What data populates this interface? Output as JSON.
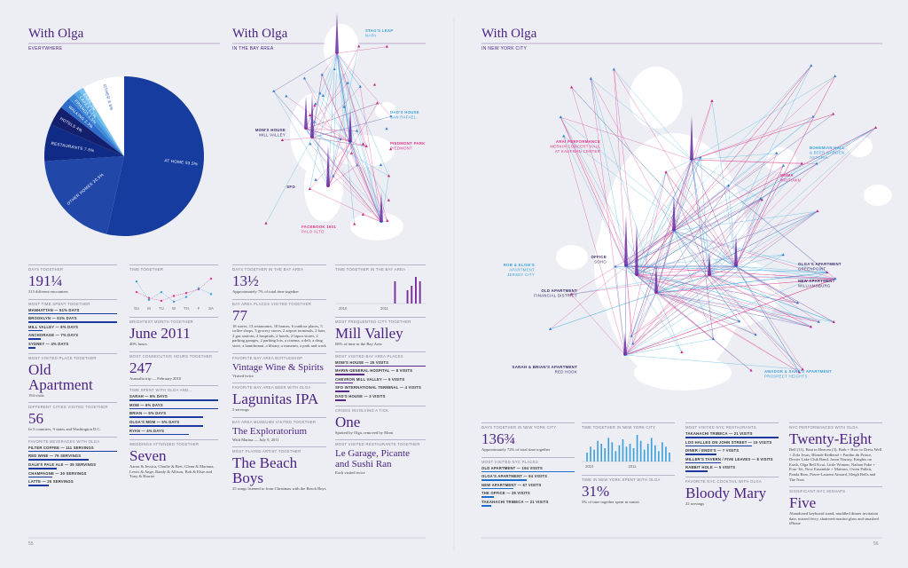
{
  "everywhere": {
    "title": "With Olga",
    "subtitle": "EVERYWHERE",
    "pie": {
      "type": "pie",
      "labels": [
        "AT HOME 53.5%",
        "OTHER HOMES 20.5%",
        "RESTAURANTS 7.5%",
        "HOTELS 4%",
        "WALKING 2.3%",
        "FRIENDS 1.5%",
        "CAFES 1.1%",
        "BARS 1%",
        "OTHER 8.6%"
      ],
      "values": [
        53.5,
        20.5,
        7.5,
        4,
        2.3,
        1.5,
        1.1,
        1,
        8.6
      ],
      "colors": [
        "#173c9f",
        "#2147a8",
        "#0f2b86",
        "#14206e",
        "#2f6bc9",
        "#3f8ad8",
        "#55a6e4",
        "#74c0ee",
        "#ffffff"
      ]
    }
  },
  "bay": {
    "title": "With Olga",
    "subtitle": "IN THE BAY AREA",
    "map_labels": [
      {
        "lines": [
          "STAG'S LEAP",
          "NAPA"
        ]
      },
      {
        "lines": [
          "DAD'S HOUSE",
          "SAN RAFAEL"
        ]
      },
      {
        "lines": [
          "MOM'S HOUSE",
          "MILL VALLEY"
        ]
      },
      {
        "lines": [
          "PIEDMONT PARK",
          "PIEDMONT"
        ]
      },
      {
        "lines": [
          "SFO"
        ]
      },
      {
        "lines": [
          "FACEBOOK 1601",
          "PALO ALTO"
        ]
      }
    ]
  },
  "nyc": {
    "title": "With Olga",
    "subtitle": "IN NEW YORK CITY",
    "map_labels": [
      {
        "lines": [
          "ARAI PERFORMANCE",
          "MERKIN CONCERT HALL",
          "AT KAUFMAN CENTER"
        ]
      },
      {
        "lines": [
          "BOHEMIAN HALL",
          "& BEER GARDEN",
          "ASTORIA"
        ]
      },
      {
        "lines": [
          "MOMA",
          "MIDTOWN"
        ]
      },
      {
        "lines": [
          "OFFICE",
          "SOHO"
        ]
      },
      {
        "lines": [
          "ROB & ELISE'S",
          "APARTMENT",
          "JERSEY CITY"
        ]
      },
      {
        "lines": [
          "OLD APARTMENT",
          "FINANCIAL DISTRICT"
        ]
      },
      {
        "lines": [
          "OLGA'S APARTMENT",
          "GREENPOINT"
        ]
      },
      {
        "lines": [
          "NEW APARTMENT",
          "WILLIAMSBURG"
        ]
      },
      {
        "lines": [
          "SARAH & BRIAN'S APARTMENT",
          "RED HOOK"
        ]
      },
      {
        "lines": [
          "AMADOR & SARA'S APARTMENT",
          "PROSPECT HEIGHTS"
        ]
      }
    ]
  },
  "columns": [
    [
      {
        "label": "DAYS TOGETHER",
        "value": "191¼",
        "note": "315 different encounters"
      },
      {
        "label": "MOST TIME SPENT TOGETHER",
        "items": [
          {
            "text": "MANHATTAN — 51% DAYS",
            "value": 51
          },
          {
            "text": "BROOKLYN — 51% DAYS",
            "value": 51
          },
          {
            "text": "MILL VALLEY — 8% DAYS",
            "value": 8
          },
          {
            "text": "ANCHORAGE — 7% DAYS",
            "value": 7
          },
          {
            "text": "SYDNEY — 4% DAYS",
            "value": 4
          }
        ]
      },
      {
        "label": "MOST VISITED PLACE TOGETHER",
        "value": "Old Apartment",
        "note": "194 visits"
      },
      {
        "label": "DIFFERENT CITIES VISITED TOGETHER",
        "value": "56",
        "note": "In 5 countries, 9 states and Washington D.C."
      },
      {
        "label": "FAVORITE BEVERAGES WITH OLGA",
        "items": [
          {
            "text": "FILTER COFFEE — 111 SERVINGS",
            "value": 111
          },
          {
            "text": "RED WINE — 76 SERVINGS",
            "value": 76
          },
          {
            "text": "DALE'S PALE ALE — 35 SERVINGS",
            "value": 35
          },
          {
            "text": "CHAMPAGNE — 30 SERVINGS",
            "value": 30
          },
          {
            "text": "LATTE — 26 SERVINGS",
            "value": 26
          }
        ]
      }
    ],
    [
      {
        "label": "TIME TOGETHER",
        "chart": {
          "type": "line",
          "categories": [
            "SU",
            "M",
            "TU",
            "W",
            "TH",
            "F",
            "SA"
          ],
          "series": [
            {
              "color": "#e0338a",
              "values": [
                3.0,
                2.4,
                2.1,
                2.6,
                2.9,
                3.3,
                4.4
              ]
            },
            {
              "color": "#3aa0dc",
              "values": [
                4.1,
                2.2,
                3.0,
                2.0,
                2.5,
                3.4,
                2.8
              ]
            }
          ]
        }
      },
      {
        "label": "BRIGHTEST MONTH TOGETHER",
        "value": "June 2011",
        "note": "40% hours"
      },
      {
        "label": "MOST CONSECUTIVE HOURS TOGETHER",
        "value": "247",
        "note": "Australia trip — February 2010"
      },
      {
        "label": "TIME SPENT WITH OLGA AND...",
        "items": [
          {
            "text": "SARAH — 6% DAYS",
            "value": 6
          },
          {
            "text": "MOM — 6% DAYS",
            "value": 6
          },
          {
            "text": "BRIAN — 5% DAYS",
            "value": 5
          },
          {
            "text": "OLGA'S MOM — 5% DAYS",
            "value": 5
          },
          {
            "text": "RYAN — 4% DAYS",
            "value": 4
          }
        ]
      },
      {
        "label": "WEDDINGS ATTENDED TOGETHER",
        "value": "Seven",
        "note": "Aaron & Jessica, Charlie & Bret, Glenn & Mariana, Lewis & Ange, Randy & Allison, Bob & Elsie and Tony & Harriet"
      }
    ],
    [
      {
        "label": "DAYS TOGETHER IN THE BAY AREA",
        "value": "13½",
        "note": "Approximately 7% of total time together"
      },
      {
        "label": "BAY AREA PLACES VISITED TOGETHER",
        "value": "77",
        "note": "18 stores, 13 restaurants, 10 homes, 6 outdoor places, 5 coffee shops, 3 grocery stores, 2 airport terminals, 2 bars, 2 gas stations, 2 hospitals, 2 hotels, 2 liquor stores, 2 parking garages, 2 parking lots, a cinema, a deli, a drug store, a laundromat, a library, a museum, a park and work"
      },
      {
        "label": "FAVORITE BAY AREA BOTTLESHOP",
        "value": "Vintage Wine & Spirits",
        "note": "Visited twice"
      },
      {
        "label": "FAVORITE BAY AREA BEER WITH OLGA",
        "value": "Lagunitas IPA",
        "note": "5 servings"
      },
      {
        "label": "BAY AREA MUSEUMS VISITED TOGETHER",
        "value": "The Exploratorium",
        "note": "With Marina — July 9, 2011"
      },
      {
        "label": "MOST PLAYED ARTIST TOGETHER",
        "value": "The Beach Boys",
        "note": "25 songs listened to from Christmas with the Beach Boys"
      }
    ],
    [
      {
        "label": "TIME TOGETHER IN THE BAY AREA",
        "chart": {
          "type": "bar",
          "color": "#7a2a9a",
          "categories": [
            "2010",
            null,
            null,
            null,
            null,
            null,
            null,
            null,
            null,
            null,
            "2011",
            null,
            null,
            null,
            null,
            null,
            null,
            null,
            null,
            null
          ],
          "values": [
            0,
            0,
            0,
            0,
            0,
            0,
            0,
            0,
            0,
            0,
            0,
            0,
            0,
            5,
            0,
            0,
            3,
            4,
            6,
            5
          ]
        }
      },
      {
        "label": "MOST FREQUENTED CITY TOGETHER",
        "value": "Mill Valley",
        "note": "68% of time in the Bay Area"
      },
      {
        "label": "MOST VISITED BAY AREA PLACES",
        "items": [
          {
            "text": "MOM'S HOUSE — 25 VISITS",
            "value": 25
          },
          {
            "text": "MARIN GENERAL HOSPITAL — 8 VISITS",
            "value": 8
          },
          {
            "text": "CHEVRON MILL VALLEY — 5 VISITS",
            "value": 5
          },
          {
            "text": "SFO INTERNATIONAL TERMINAL — 4 VISITS",
            "value": 4
          },
          {
            "text": "DAD'S HOUSE — 3 VISITS",
            "value": 3
          }
        ]
      },
      {
        "label": "CRISES INVOLVING A TICK",
        "value": "One",
        "note": "Spotted by Olga, removed by Mom"
      },
      {
        "label": "MOST VISITED RESTAURANTS TOGETHER",
        "value": "Le Garage, Picante and Sushi Ran",
        "note": "Each visited twice"
      }
    ],
    [
      {
        "label": "DAYS TOGETHER IN NEW YORK CITY",
        "value": "136¾",
        "note": "Approximately 72% of total time together"
      },
      {
        "label": "MOST VISITED NYC PLACES",
        "items": [
          {
            "text": "OLD APARTMENT — 194 VISITS",
            "value": 194
          },
          {
            "text": "OLGA'S APARTMENT — 94 VISITS",
            "value": 94
          },
          {
            "text": "NEW APARTMENT — 67 VISITS",
            "value": 67
          },
          {
            "text": "THE OFFICE — 25 VISITS",
            "value": 25
          },
          {
            "text": "TAKAHACHI TRIBECA — 21 VISITS",
            "value": 21
          }
        ]
      }
    ],
    [
      {
        "label": "TIME TOGETHER IN NEW YORK CITY",
        "chart": {
          "type": "bar",
          "color": "#3aa0dc",
          "categories": [
            "2010",
            null,
            null,
            null,
            null,
            null,
            null,
            null,
            null,
            null,
            null,
            null,
            "2011",
            null,
            null,
            null,
            null,
            null,
            null,
            null,
            null,
            null,
            null,
            null
          ],
          "values": [
            6,
            10,
            8,
            14,
            12,
            9,
            16,
            13,
            7,
            11,
            15,
            10,
            12,
            9,
            18,
            14,
            8,
            12,
            16,
            11,
            7,
            13,
            10,
            6
          ]
        }
      },
      {
        "label": "TIME IN NEW YORK SPENT WITH OLGA",
        "value": "31%",
        "note": "5% of time together spent in transit"
      }
    ],
    [
      {
        "label": "MOST VISITED NYC RESTAURANTS",
        "items": [
          {
            "text": "TAKAHACHI TRIBECA — 21 VISITS",
            "value": 21
          },
          {
            "text": "LOS HALLES ON JOHN STREET — 15 VISITS",
            "value": 15
          },
          {
            "text": "DINER / ENDS'S — 7 VISITS",
            "value": 7
          },
          {
            "text": "MILLER'S TAVERN / FIVE LEAVES — 8 VISITS",
            "value": 8
          },
          {
            "text": "RABBIT HOLE — 5 VISITS",
            "value": 5
          }
        ]
      },
      {
        "label": "FAVORITE NYC COCKTAIL WITH OLGA",
        "value": "Bloody Mary",
        "note": "22 servings"
      }
    ],
    [
      {
        "label": "NYC PERFORMANCES WITH OLGA",
        "value": "Twenty-Eight",
        "note": "Bell (11), Beat in Heaven (3), Bath + How to Dress Well + Zola Jesus, Blonde Redhead + Panthu du Prince, Dexter Lake Club Band, Jason Nazary, Knights on Earth, Olga Bell Kvai, Little Women, Nathan Fake + Four Tet, Now Ensemble + Matmos, Owen Pallett, Panda Bear, Pierre-Laurent Aimard, Sleigh Bells and The Now"
      },
      {
        "label": "SIGNIFICANT NYC MISHAPS",
        "value": "Five",
        "note": "Abandoned keyboard stand, muddled dinner invitation date, missed ferry, shattered martini glass and smashed iPhone"
      }
    ]
  ],
  "page_numbers": [
    "55",
    "56"
  ]
}
